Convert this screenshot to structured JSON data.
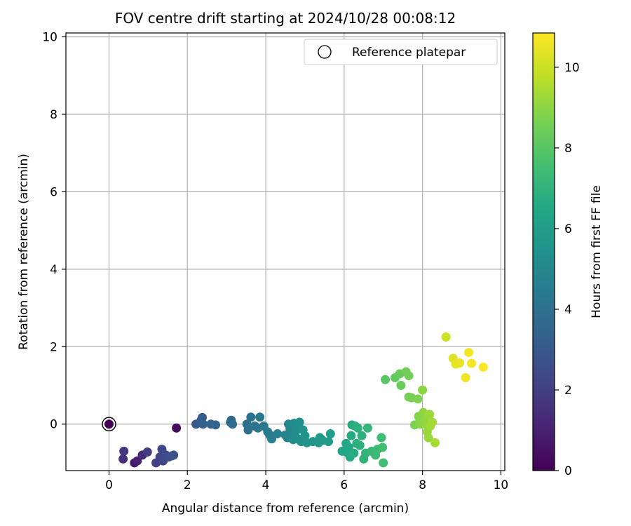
{
  "chart_data": {
    "type": "scatter",
    "title": "FOV centre drift starting at 2024/10/28 00:08:12",
    "xlabel": "Angular distance from reference (arcmin)",
    "ylabel": "Rotation from reference (arcmin)",
    "xlim": [
      -1.1,
      10.1
    ],
    "ylim": [
      -1.2,
      10.1
    ],
    "xticks": [
      "0",
      "2",
      "4",
      "6",
      "8",
      "10"
    ],
    "yticks": [
      "0",
      "2",
      "4",
      "6",
      "8",
      "10"
    ],
    "grid": true,
    "legend": {
      "placement": "top-right",
      "entries": [
        "Reference platepar"
      ]
    },
    "colorbar": {
      "label": "Hours from first FF file",
      "range": [
        0,
        10.85
      ],
      "ticks": [
        "0",
        "2",
        "4",
        "6",
        "8",
        "10"
      ],
      "colormap": "viridis"
    },
    "reference_point": {
      "x": 0,
      "y": 0,
      "label": "Reference platepar"
    },
    "series": [
      {
        "columns": [
          "x",
          "y",
          "hours"
        ],
        "points": [
          [
            0.0,
            0.0,
            0.05
          ],
          [
            1.72,
            -0.1,
            0.3
          ],
          [
            0.65,
            -1.0,
            0.7
          ],
          [
            0.72,
            -0.95,
            1.0
          ],
          [
            0.85,
            -0.8,
            1.3
          ],
          [
            0.36,
            -0.9,
            1.5
          ],
          [
            0.38,
            -0.7,
            1.7
          ],
          [
            0.98,
            -0.72,
            1.9
          ],
          [
            1.2,
            -1.0,
            2.1
          ],
          [
            1.3,
            -0.85,
            2.2
          ],
          [
            1.38,
            -0.95,
            2.3
          ],
          [
            1.35,
            -0.65,
            2.35
          ],
          [
            1.45,
            -0.8,
            2.45
          ],
          [
            1.52,
            -0.85,
            2.55
          ],
          [
            1.6,
            -0.82,
            2.65
          ],
          [
            1.65,
            -0.8,
            2.75
          ],
          [
            2.22,
            0.0,
            3.0
          ],
          [
            2.35,
            0.1,
            3.1
          ],
          [
            2.38,
            0.17,
            3.2
          ],
          [
            2.4,
            0.0,
            3.3
          ],
          [
            2.6,
            0.0,
            3.4
          ],
          [
            2.72,
            -0.02,
            3.5
          ],
          [
            3.1,
            0.05,
            3.7
          ],
          [
            3.12,
            0.1,
            3.75
          ],
          [
            3.15,
            0.0,
            3.8
          ],
          [
            3.52,
            0.0,
            4.0
          ],
          [
            3.55,
            -0.15,
            4.05
          ],
          [
            3.62,
            0.18,
            4.1
          ],
          [
            3.72,
            -0.05,
            4.2
          ],
          [
            3.8,
            -0.1,
            4.25
          ],
          [
            3.85,
            0.18,
            4.3
          ],
          [
            3.95,
            -0.05,
            4.4
          ],
          [
            4.05,
            -0.2,
            4.5
          ],
          [
            4.1,
            -0.28,
            4.55
          ],
          [
            4.15,
            -0.38,
            4.6
          ],
          [
            4.3,
            -0.25,
            4.7
          ],
          [
            4.5,
            -0.28,
            4.8
          ],
          [
            4.55,
            -0.35,
            4.85
          ],
          [
            4.58,
            0.0,
            4.9
          ],
          [
            4.62,
            -0.12,
            4.95
          ],
          [
            4.65,
            -0.2,
            5.0
          ],
          [
            4.68,
            -0.3,
            5.05
          ],
          [
            4.7,
            -0.4,
            5.1
          ],
          [
            4.72,
            0.02,
            5.15
          ],
          [
            4.75,
            -0.22,
            5.2
          ],
          [
            4.8,
            -0.1,
            5.25
          ],
          [
            4.82,
            -0.38,
            5.3
          ],
          [
            4.86,
            0.05,
            5.35
          ],
          [
            4.9,
            -0.45,
            5.4
          ],
          [
            4.95,
            -0.15,
            5.45
          ],
          [
            5.0,
            -0.3,
            5.5
          ],
          [
            5.05,
            -0.48,
            5.55
          ],
          [
            5.2,
            -0.45,
            5.65
          ],
          [
            5.35,
            -0.48,
            5.75
          ],
          [
            5.38,
            -0.35,
            5.8
          ],
          [
            5.45,
            -0.42,
            5.85
          ],
          [
            5.6,
            -0.45,
            5.95
          ],
          [
            5.65,
            -0.25,
            6.0
          ],
          [
            5.95,
            -0.7,
            6.3
          ],
          [
            6.05,
            -0.5,
            6.4
          ],
          [
            6.1,
            -0.75,
            6.45
          ],
          [
            6.12,
            -0.6,
            6.5
          ],
          [
            6.15,
            -0.85,
            6.55
          ],
          [
            6.18,
            -0.3,
            6.6
          ],
          [
            6.2,
            -0.02,
            6.65
          ],
          [
            6.25,
            -0.75,
            6.7
          ],
          [
            6.28,
            -0.05,
            6.75
          ],
          [
            6.32,
            -0.5,
            6.8
          ],
          [
            6.35,
            -0.1,
            6.85
          ],
          [
            6.4,
            -0.55,
            6.9
          ],
          [
            6.45,
            -0.3,
            6.95
          ],
          [
            6.5,
            -0.9,
            7.0
          ],
          [
            6.55,
            -0.75,
            7.05
          ],
          [
            6.6,
            -0.1,
            7.1
          ],
          [
            6.7,
            -0.7,
            7.2
          ],
          [
            6.8,
            -0.8,
            7.3
          ],
          [
            6.85,
            -0.65,
            7.35
          ],
          [
            6.95,
            -0.35,
            7.45
          ],
          [
            6.98,
            -0.6,
            7.5
          ],
          [
            7.0,
            -1.0,
            7.55
          ],
          [
            7.05,
            1.15,
            8.0
          ],
          [
            7.3,
            1.2,
            8.2
          ],
          [
            7.42,
            1.3,
            8.3
          ],
          [
            7.45,
            1.0,
            8.35
          ],
          [
            7.58,
            1.35,
            8.45
          ],
          [
            7.65,
            1.25,
            8.5
          ],
          [
            7.65,
            0.7,
            8.55
          ],
          [
            7.72,
            0.68,
            8.6
          ],
          [
            7.8,
            -0.02,
            8.7
          ],
          [
            7.88,
            0.65,
            8.75
          ],
          [
            7.9,
            0.2,
            8.8
          ],
          [
            7.92,
            0.05,
            8.85
          ],
          [
            7.95,
            0.0,
            8.9
          ],
          [
            8.0,
            0.88,
            8.95
          ],
          [
            8.02,
            0.3,
            9.0
          ],
          [
            8.05,
            0.1,
            9.05
          ],
          [
            8.08,
            0.0,
            9.1
          ],
          [
            8.12,
            -0.2,
            9.15
          ],
          [
            8.15,
            -0.35,
            9.2
          ],
          [
            8.18,
            0.25,
            9.25
          ],
          [
            8.2,
            -0.05,
            9.3
          ],
          [
            8.25,
            0.05,
            9.35
          ],
          [
            8.32,
            -0.48,
            9.4
          ],
          [
            8.6,
            2.25,
            10.0
          ],
          [
            8.78,
            1.7,
            10.3
          ],
          [
            8.85,
            1.55,
            10.4
          ],
          [
            8.95,
            1.58,
            10.5
          ],
          [
            9.1,
            1.2,
            10.6
          ],
          [
            9.18,
            1.85,
            10.65
          ],
          [
            9.25,
            1.57,
            10.7
          ],
          [
            9.55,
            1.47,
            10.85
          ]
        ]
      }
    ]
  }
}
